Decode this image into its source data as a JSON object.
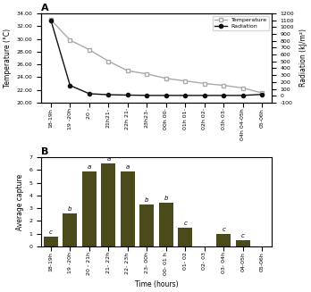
{
  "chart_data": [
    {
      "type": "line",
      "panel_label": "A",
      "categories": [
        "18-19h",
        "19 -20h",
        "20 -",
        "21h21-",
        "22h 21-",
        "23h23-",
        "00h 00-",
        "01h 01-",
        "02h 02-",
        "03h 03-",
        "04h 04-05h",
        "05-06h"
      ],
      "series": [
        {
          "name": "Temperature",
          "color": "#aaaaaa",
          "marker": "square",
          "line_style": "solid",
          "values": [
            33.0,
            29.8,
            28.3,
            26.5,
            25.0,
            24.5,
            23.8,
            23.4,
            23.0,
            22.7,
            22.3,
            21.5
          ]
        },
        {
          "name": "Radiation",
          "color": "#111111",
          "marker": "circle",
          "line_style": "solid",
          "axis": "y2",
          "values": [
            1100,
            150,
            30,
            15,
            10,
            5,
            5,
            5,
            5,
            5,
            5,
            20
          ]
        }
      ],
      "y_label": "Temperature (°C)",
      "y2_label": "Radiation (kJ/m²)",
      "ylim": [
        20.0,
        34.0
      ],
      "yticks": [
        {
          "value": 20.0,
          "label": "20.00"
        },
        {
          "value": 22.0,
          "label": "22.00"
        },
        {
          "value": 24.0,
          "label": "24.00"
        },
        {
          "value": 26.0,
          "label": "26.00"
        },
        {
          "value": 28.0,
          "label": "28.00"
        },
        {
          "value": 30.0,
          "label": "30.00"
        },
        {
          "value": 32.0,
          "label": "32.00"
        },
        {
          "value": 34.0,
          "label": "34.00"
        }
      ],
      "y2lim": [
        -100,
        1200
      ],
      "y2ticks": [
        -100,
        0,
        100,
        200,
        300,
        400,
        500,
        600,
        700,
        800,
        900,
        1000,
        1100,
        1200
      ],
      "legend": "upper right",
      "grid": false
    },
    {
      "type": "bar",
      "panel_label": "B",
      "categories": [
        "18-19h",
        "19 -20h",
        "20 - 21h",
        "21- 22h",
        "22- 23h",
        "23- 00h",
        "00- 01 h",
        "01- 02",
        "02- 03",
        "03- 04h",
        "04-05h",
        "05-06h"
      ],
      "values": [
        0.8,
        2.6,
        5.9,
        6.5,
        5.9,
        3.3,
        3.45,
        1.5,
        0.0,
        1.0,
        0.5,
        0.0
      ],
      "color": "#4a4a1a",
      "annotations": [
        "c",
        "b",
        "a",
        "a",
        "a",
        "b",
        "b",
        "c",
        null,
        "c",
        "c",
        null
      ],
      "y_label": "Average capture",
      "x_label": "Time (hours)",
      "ylim": [
        0,
        7
      ],
      "yticks": [
        0,
        1,
        2,
        3,
        4,
        5,
        6,
        7
      ],
      "grid": false
    }
  ]
}
